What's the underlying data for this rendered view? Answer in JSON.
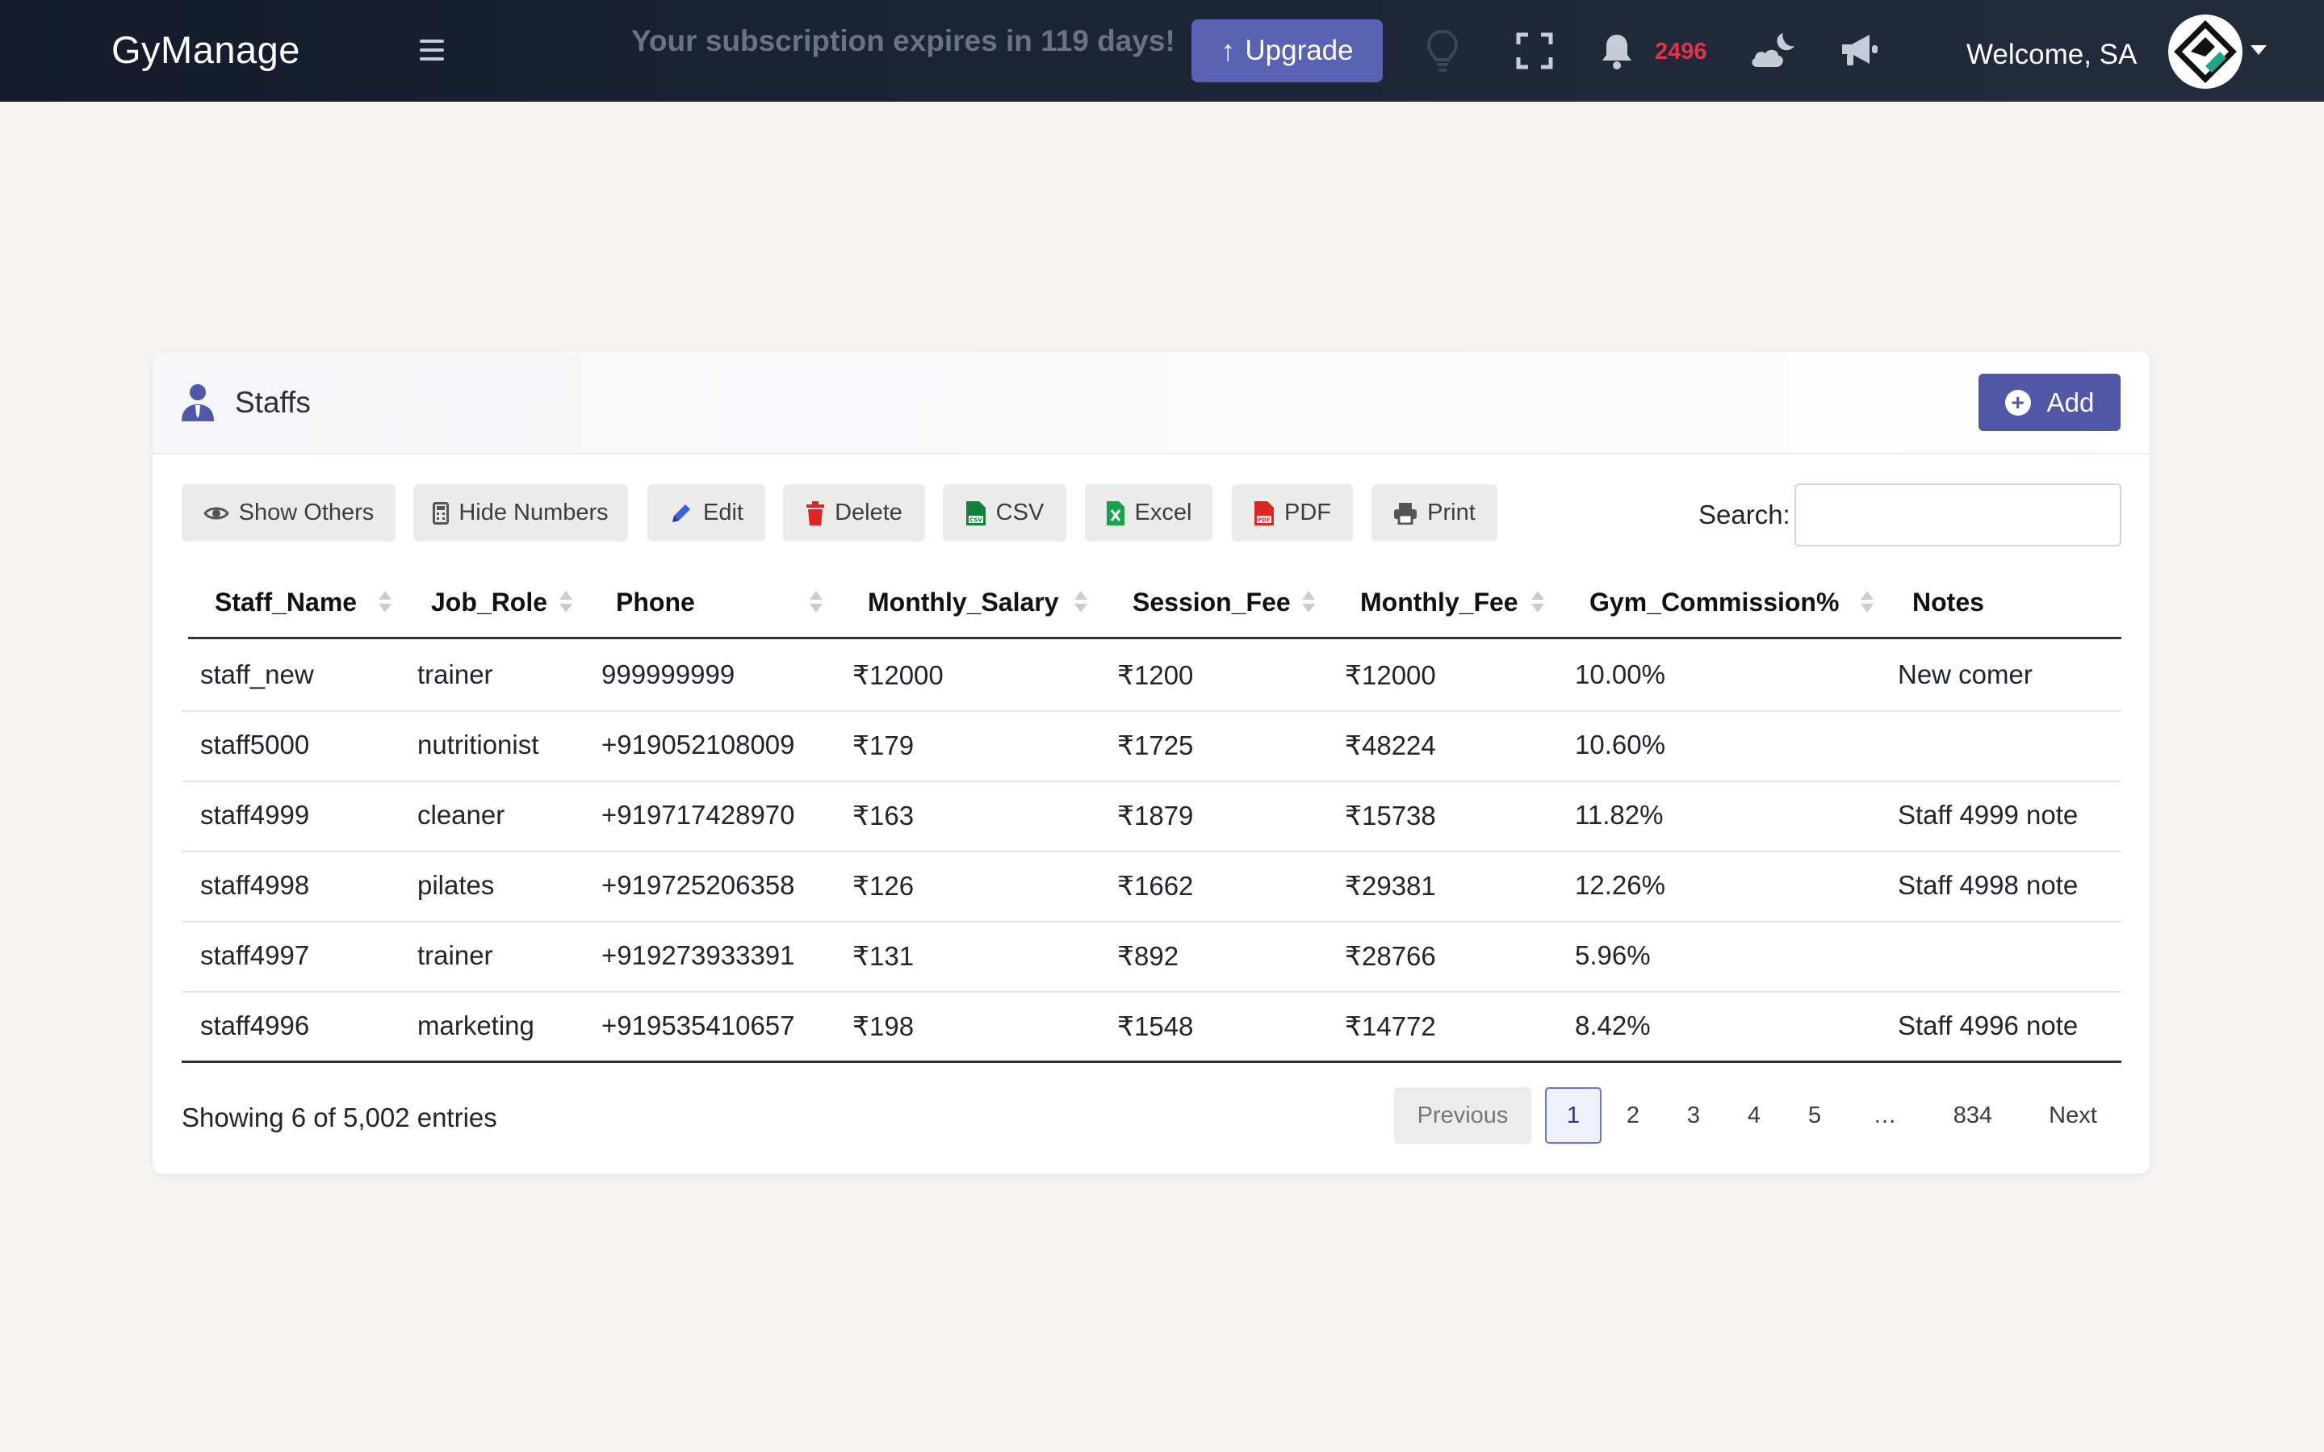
{
  "header": {
    "brand": "GyManage",
    "subscription_text": "Your subscription expires in 119 days!",
    "upgrade_label": "Upgrade",
    "notification_count": "2496",
    "welcome_text": "Welcome, SA",
    "icons": [
      "menu-icon",
      "lightbulb-icon",
      "fullscreen-icon",
      "bell-icon",
      "weather-icon",
      "megaphone-icon",
      "avatar-logo",
      "caret-down-icon"
    ]
  },
  "card": {
    "title": "Staffs",
    "add_label": "Add"
  },
  "toolbar": {
    "show_others": "Show Others",
    "hide_numbers": "Hide Numbers",
    "edit": "Edit",
    "delete": "Delete",
    "csv": "CSV",
    "excel": "Excel",
    "pdf": "PDF",
    "print": "Print",
    "search_label": "Search:",
    "search_value": ""
  },
  "table": {
    "columns": [
      "Staff_Name",
      "Job_Role",
      "Phone",
      "Monthly_Salary",
      "Session_Fee",
      "Monthly_Fee",
      "Gym_Commission%",
      "Notes"
    ],
    "rows": [
      [
        "staff_new",
        "trainer",
        "999999999",
        "₹12000",
        "₹1200",
        "₹12000",
        "10.00%",
        "New comer"
      ],
      [
        "staff5000",
        "nutritionist",
        "+919052108009",
        "₹179",
        "₹1725",
        "₹48224",
        "10.60%",
        ""
      ],
      [
        "staff4999",
        "cleaner",
        "+919717428970",
        "₹163",
        "₹1879",
        "₹15738",
        "11.82%",
        "Staff 4999 note"
      ],
      [
        "staff4998",
        "pilates",
        "+919725206358",
        "₹126",
        "₹1662",
        "₹29381",
        "12.26%",
        "Staff 4998 note"
      ],
      [
        "staff4997",
        "trainer",
        "+919273933391",
        "₹131",
        "₹892",
        "₹28766",
        "5.96%",
        ""
      ],
      [
        "staff4996",
        "marketing",
        "+919535410657",
        "₹198",
        "₹1548",
        "₹14772",
        "8.42%",
        "Staff 4996 note"
      ]
    ]
  },
  "footer": {
    "info": "Showing 6 of 5,002 entries",
    "pagination": {
      "previous": "Previous",
      "pages": [
        "1",
        "2",
        "3",
        "4",
        "5",
        "…",
        "834"
      ],
      "current": "1",
      "next": "Next"
    }
  },
  "colors": {
    "topbar": "#1b2233",
    "accent": "#5a62b3",
    "notification": "#e0344a"
  }
}
